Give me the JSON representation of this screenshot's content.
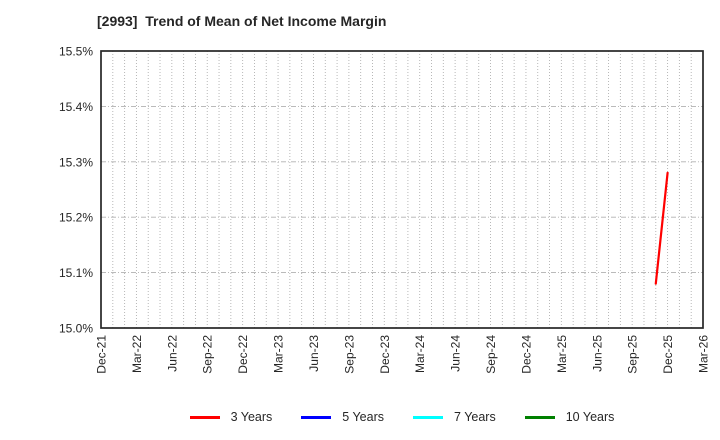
{
  "title": "[2993]  Trend of Mean of Net Income Margin",
  "chart_data": {
    "type": "line",
    "title": "[2993]  Trend of Mean of Net Income Margin",
    "x_axis": {
      "tick_labels": [
        "Dec-21",
        "Mar-22",
        "Jun-22",
        "Sep-22",
        "Dec-22",
        "Mar-23",
        "Jun-23",
        "Sep-23",
        "Dec-23",
        "Mar-24",
        "Jun-24",
        "Sep-24",
        "Dec-24",
        "Mar-25",
        "Jun-25",
        "Sep-25",
        "Dec-25",
        "Mar-26"
      ],
      "months_total": 51,
      "months_per_tick": 3
    },
    "y_axis": {
      "tick_labels": [
        "15.0%",
        "15.1%",
        "15.2%",
        "15.3%",
        "15.4%",
        "15.5%"
      ],
      "min": 15.0,
      "max": 15.5,
      "step": 0.1,
      "unit": "%"
    },
    "grid": {
      "vertical": "dotted monthly",
      "horizontal": "dashed per 0.1%"
    },
    "series": [
      {
        "name": "3 Years",
        "color": "#ff0000",
        "points": [
          {
            "x_label": "Nov-25",
            "month_index": 47,
            "value": 15.08
          },
          {
            "x_label": "Dec-25",
            "month_index": 48,
            "value": 15.28
          }
        ]
      },
      {
        "name": "5 Years",
        "color": "#0000ff",
        "points": []
      },
      {
        "name": "7 Years",
        "color": "#00ffff",
        "points": []
      },
      {
        "name": "10 Years",
        "color": "#008000",
        "points": []
      }
    ],
    "legend": {
      "position": "bottom",
      "labels": [
        "3 Years",
        "5 Years",
        "7 Years",
        "10 Years"
      ]
    }
  }
}
